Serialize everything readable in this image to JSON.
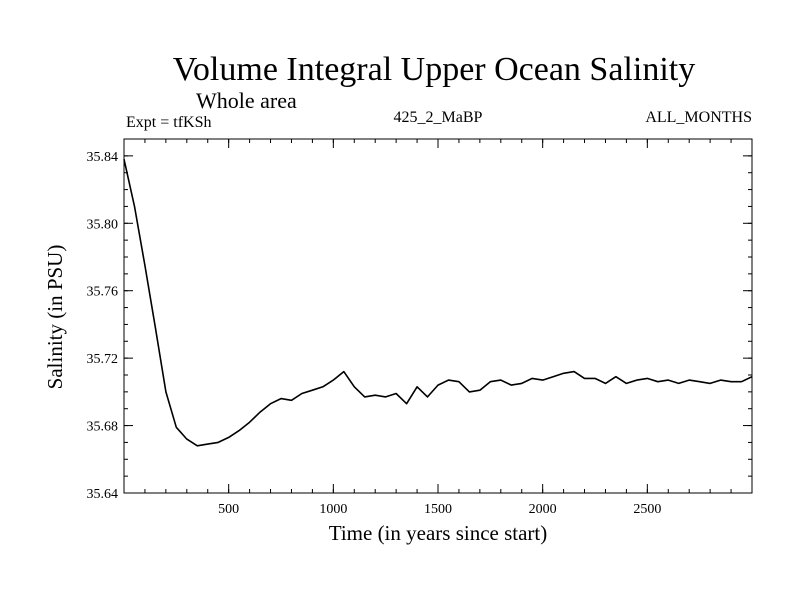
{
  "chart_data": {
    "type": "line",
    "title": "Volume Integral Upper Ocean Salinity",
    "subtitle": "Whole area",
    "expt_label": "Expt = tfKSh",
    "run_label": "425_2_MaBP",
    "months_label": "ALL_MONTHS",
    "xlabel": "Time (in years since start)",
    "ylabel": "Salinity (in PSU)",
    "xlim": [
      0,
      3000
    ],
    "ylim": [
      35.64,
      35.85
    ],
    "x_ticks": [
      500,
      1000,
      1500,
      2000,
      2500
    ],
    "y_ticks": [
      "35.64",
      "35.68",
      "35.72",
      "35.76",
      "35.80",
      "35.84"
    ],
    "grid": false,
    "series": [
      {
        "name": "Salinity",
        "color": "#000000",
        "x": [
          0,
          50,
          100,
          150,
          200,
          250,
          300,
          350,
          400,
          450,
          500,
          550,
          600,
          650,
          700,
          750,
          800,
          850,
          900,
          950,
          1000,
          1050,
          1100,
          1150,
          1200,
          1250,
          1300,
          1350,
          1400,
          1450,
          1500,
          1550,
          1600,
          1650,
          1700,
          1750,
          1800,
          1850,
          1900,
          1950,
          2000,
          2050,
          2100,
          2150,
          2200,
          2250,
          2300,
          2350,
          2400,
          2450,
          2500,
          2550,
          2600,
          2650,
          2700,
          2750,
          2800,
          2850,
          2900,
          2950,
          3000
        ],
        "values": [
          35.838,
          35.81,
          35.775,
          35.738,
          35.7,
          35.679,
          35.672,
          35.668,
          35.669,
          35.67,
          35.673,
          35.677,
          35.682,
          35.688,
          35.693,
          35.696,
          35.695,
          35.699,
          35.701,
          35.703,
          35.707,
          35.712,
          35.703,
          35.697,
          35.698,
          35.697,
          35.699,
          35.693,
          35.703,
          35.697,
          35.704,
          35.707,
          35.706,
          35.7,
          35.701,
          35.706,
          35.707,
          35.704,
          35.705,
          35.708,
          35.707,
          35.709,
          35.711,
          35.712,
          35.708,
          35.708,
          35.705,
          35.709,
          35.705,
          35.707,
          35.708,
          35.706,
          35.707,
          35.705,
          35.707,
          35.706,
          35.705,
          35.707,
          35.706,
          35.706,
          35.709
        ]
      }
    ]
  }
}
